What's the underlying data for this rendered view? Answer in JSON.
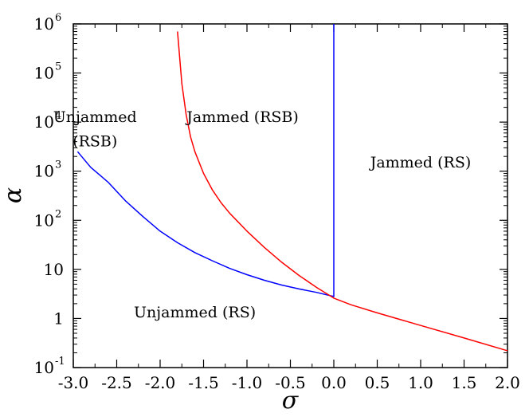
{
  "chart_data": {
    "type": "line",
    "title": "",
    "xlabel": "σ",
    "ylabel": "α",
    "xlim": [
      -3.0,
      2.0
    ],
    "ylim": [
      0.1,
      1000000
    ],
    "yscale": "log",
    "grid": false,
    "x_ticks": [
      -3.0,
      -2.5,
      -2.0,
      -1.5,
      -1.0,
      -0.5,
      0.0,
      0.5,
      1.0,
      1.5,
      2.0
    ],
    "x_tick_labels": [
      "-3.0",
      "-2.5",
      "-2.0",
      "-1.5",
      "-1.0",
      "-0.5",
      "0.0",
      "0.5",
      "1.0",
      "1.5",
      "2.0"
    ],
    "y_ticks": [
      0.1,
      1,
      10,
      100,
      1000,
      10000,
      100000,
      1000000
    ],
    "y_tick_labels": [
      {
        "base": "10",
        "exp": "-1"
      },
      {
        "base": "1",
        "exp": ""
      },
      {
        "base": "10",
        "exp": ""
      },
      {
        "base": "10",
        "exp": "2"
      },
      {
        "base": "10",
        "exp": "3"
      },
      {
        "base": "10",
        "exp": "4"
      },
      {
        "base": "10",
        "exp": "5"
      },
      {
        "base": "10",
        "exp": "6"
      }
    ],
    "series": [
      {
        "color": "#0000ff",
        "x": [
          -2.95,
          -2.8,
          -2.6,
          -2.4,
          -2.2,
          -2.0,
          -1.8,
          -1.6,
          -1.4,
          -1.2,
          -1.0,
          -0.8,
          -0.6,
          -0.4,
          -0.2,
          0.0,
          0.0,
          0.0
        ],
        "y": [
          2500,
          1200,
          600,
          250,
          120,
          60,
          35,
          22,
          15,
          10.5,
          7.8,
          6.0,
          4.8,
          4.0,
          3.4,
          2.8,
          100,
          1000000
        ]
      },
      {
        "color": "#ff0000",
        "x": [
          -1.8,
          -1.75,
          -1.7,
          -1.65,
          -1.6,
          -1.5,
          -1.4,
          -1.3,
          -1.2,
          -1.0,
          -0.8,
          -0.6,
          -0.4,
          -0.2,
          0.0,
          0.2,
          0.5,
          1.0,
          1.5,
          2.0
        ],
        "y": [
          700000,
          60000,
          14000,
          5000,
          2500,
          900,
          420,
          230,
          140,
          60,
          28,
          14,
          7.5,
          4.3,
          2.6,
          1.9,
          1.3,
          0.72,
          0.4,
          0.22
        ]
      }
    ],
    "annotations": [
      {
        "text": "Unjammed",
        "x": -2.75,
        "y": 10000
      },
      {
        "text": "(RSB)",
        "x": -2.75,
        "y": 3200
      },
      {
        "text": "Jammed (RSB)",
        "x": -1.05,
        "y": 10000
      },
      {
        "text": "Unjammed (RS)",
        "x": -1.6,
        "y": 1.05
      },
      {
        "text": "Jammed (RS)",
        "x": 1.0,
        "y": 1200
      }
    ]
  }
}
